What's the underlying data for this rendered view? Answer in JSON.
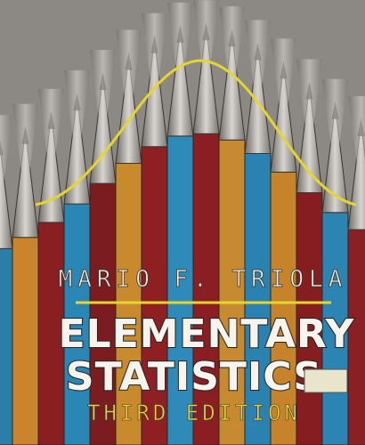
{
  "cover": {
    "author": "MARIO F. TRIOLA",
    "title_lines": [
      "ELEMENTARY",
      "STATISTICS"
    ],
    "edition": "THIRD EDITION"
  }
}
